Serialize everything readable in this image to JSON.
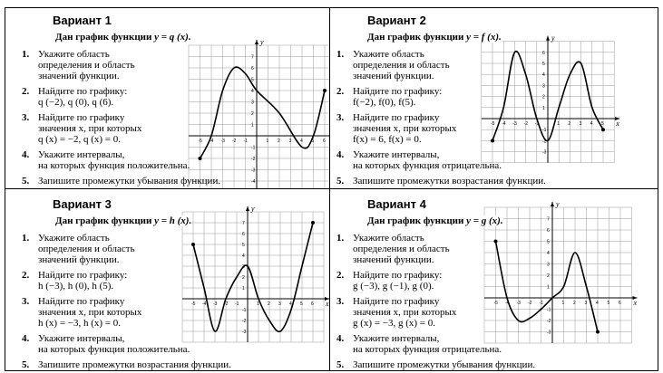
{
  "variants": [
    {
      "title": "Вариант 1",
      "heading": "Дан график функции",
      "formula": "y = q (x).",
      "tasks": [
        {
          "num": "1.",
          "lines": [
            "Укажите область",
            "определения и область",
            "значений функции."
          ]
        },
        {
          "num": "2.",
          "lines": [
            "Найдите по графику:",
            "q (−2),   q (0),   q (6)."
          ]
        },
        {
          "num": "3.",
          "lines": [
            "Найдите по графику",
            "значения x, при которых",
            "q (x) = −2,   q (x) = 0."
          ]
        },
        {
          "num": "4.",
          "lines": [
            "Укажите интервалы,",
            "на которых функция положительна."
          ]
        },
        {
          "num": "5.",
          "lines": [
            "Запишите промежутки убывания функции."
          ]
        }
      ],
      "graph": {
        "x_axis_label": "x",
        "y_axis_label": "y",
        "x_ticks": [
          "-5",
          "-4",
          "-3",
          "-2",
          "-1",
          "1",
          "2",
          "3",
          "4",
          "5",
          "6"
        ],
        "y_ticks": [
          "7",
          "6",
          "5",
          "4",
          "3",
          "2",
          "1",
          "-1",
          "-2",
          "-3",
          "-4",
          "-5"
        ],
        "curve_points": [
          [
            -5,
            -2
          ],
          [
            -4,
            0
          ],
          [
            -3,
            4
          ],
          [
            -2,
            6
          ],
          [
            -1,
            5.5
          ],
          [
            0,
            4
          ],
          [
            2,
            2
          ],
          [
            4,
            -1
          ],
          [
            5,
            0
          ],
          [
            6,
            4
          ]
        ],
        "endpoints": [
          [
            -5,
            -2
          ],
          [
            6,
            4
          ]
        ]
      }
    },
    {
      "title": "Вариант 2",
      "heading": "Дан график функции",
      "formula": "y = f (x).",
      "tasks": [
        {
          "num": "1.",
          "lines": [
            "Укажите область",
            "определения и область",
            "значений функции."
          ]
        },
        {
          "num": "2.",
          "lines": [
            "Найдите по графику:",
            "f(−2),  f(0),   f(5)."
          ]
        },
        {
          "num": "3.",
          "lines": [
            "Найдите по графику",
            "значения x, при которых",
            "f(x) = 6,   f(x) = 0."
          ]
        },
        {
          "num": "4.",
          "lines": [
            "Укажите интервалы,",
            "на которых функция отрицательна."
          ]
        },
        {
          "num": "5.",
          "lines": [
            "Запишите промежутки возрастания функции."
          ]
        }
      ],
      "graph": {
        "x_axis_label": "x",
        "y_axis_label": "y",
        "x_ticks": [
          "-5",
          "-4",
          "-3",
          "-2",
          "-1",
          "1",
          "2",
          "3",
          "4",
          "5"
        ],
        "y_ticks": [
          "6",
          "5",
          "4",
          "3",
          "2",
          "1",
          "-1",
          "-2",
          "-3"
        ],
        "curve_points": [
          [
            -5,
            -2
          ],
          [
            -4,
            1
          ],
          [
            -3,
            6
          ],
          [
            -2,
            4
          ],
          [
            -1,
            0
          ],
          [
            0,
            -2
          ],
          [
            1,
            1
          ],
          [
            2,
            4
          ],
          [
            3,
            5
          ],
          [
            4,
            1
          ],
          [
            5,
            -1
          ]
        ],
        "endpoints": [
          [
            -5,
            -2
          ],
          [
            5,
            -1
          ]
        ]
      }
    },
    {
      "title": "Вариант 3",
      "heading": "Дан график функции",
      "formula": "y = h (x).",
      "tasks": [
        {
          "num": "1.",
          "lines": [
            "Укажите область",
            "определения и область",
            "значений функции."
          ]
        },
        {
          "num": "2.",
          "lines": [
            "Найдите по графику:",
            "h (−3),   h (0),   h (5)."
          ]
        },
        {
          "num": "3.",
          "lines": [
            "Найдите по графику",
            "значения x, при которых",
            "h (x) = −3,   h (x) = 0."
          ]
        },
        {
          "num": "4.",
          "lines": [
            "Укажите интервалы,",
            "на которых функция положительна."
          ]
        },
        {
          "num": "5.",
          "lines": [
            "Запишите промежутки возрастания функции."
          ]
        }
      ],
      "graph": {
        "x_axis_label": "x",
        "y_axis_label": "y",
        "x_ticks": [
          "-5",
          "-4",
          "-3",
          "-2",
          "-1",
          "1",
          "2",
          "3",
          "4",
          "5",
          "6"
        ],
        "y_ticks": [
          "7",
          "6",
          "5",
          "4",
          "3",
          "2",
          "1",
          "-1",
          "-2",
          "-3"
        ],
        "curve_points": [
          [
            -5,
            5
          ],
          [
            -4,
            1
          ],
          [
            -3,
            -3
          ],
          [
            -2,
            0
          ],
          [
            -1,
            2
          ],
          [
            0,
            3
          ],
          [
            1,
            0
          ],
          [
            2,
            -2
          ],
          [
            3,
            -3
          ],
          [
            4,
            -1
          ],
          [
            5,
            3
          ],
          [
            6,
            7
          ]
        ],
        "endpoints": [
          [
            -5,
            5
          ],
          [
            6,
            7
          ]
        ]
      }
    },
    {
      "title": "Вариант 4",
      "heading": "Дан график функции",
      "formula": "y = g (x).",
      "tasks": [
        {
          "num": "1.",
          "lines": [
            "Укажите область",
            "определения и область",
            "значений функции."
          ]
        },
        {
          "num": "2.",
          "lines": [
            "Найдите по графику:",
            "g (−3),   g (−1),   g (0)."
          ]
        },
        {
          "num": "3.",
          "lines": [
            "Найдите по графику",
            "значения x, при которых",
            "g (x) = −3,   g (x) = 0."
          ]
        },
        {
          "num": "4.",
          "lines": [
            "Укажите интервалы,",
            "на которых функция отрицательна."
          ]
        },
        {
          "num": "5.",
          "lines": [
            "Запишите промежутки убывания функции."
          ]
        }
      ],
      "graph": {
        "x_axis_label": "x",
        "y_axis_label": "y",
        "x_ticks": [
          "-5",
          "-4",
          "-3",
          "-2",
          "-1",
          "1",
          "2",
          "3",
          "4",
          "5",
          "6"
        ],
        "y_ticks": [
          "7",
          "6",
          "5",
          "4",
          "3",
          "2",
          "1",
          "-1",
          "-2",
          "-3"
        ],
        "curve_points": [
          [
            -5,
            5
          ],
          [
            -4,
            0
          ],
          [
            -3,
            -2
          ],
          [
            -2,
            -1.8
          ],
          [
            -1,
            -1
          ],
          [
            0,
            0
          ],
          [
            1,
            1
          ],
          [
            2,
            4
          ],
          [
            3,
            1
          ],
          [
            4,
            -3
          ]
        ],
        "endpoints": [
          [
            -5,
            5
          ],
          [
            4,
            -3
          ]
        ]
      }
    }
  ]
}
